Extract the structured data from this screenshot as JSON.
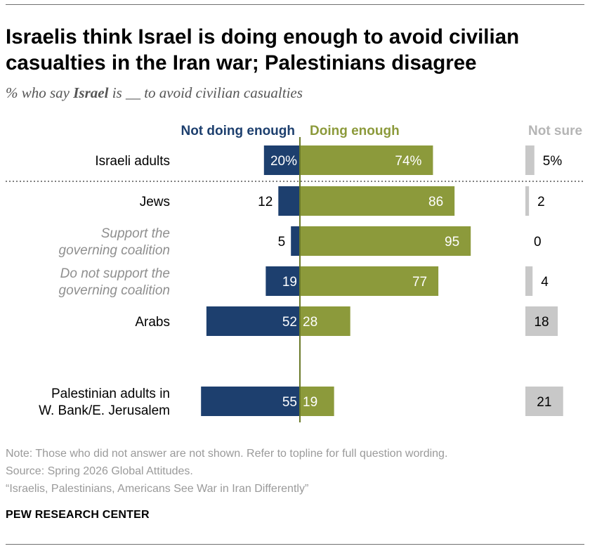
{
  "title": "Israelis think Israel is doing enough to avoid civilian casualties in the Iran war; Palestinians disagree",
  "subtitle": {
    "prefix": "% who say ",
    "emphasis": "Israel",
    "suffix": " is __ to avoid civilian casualties"
  },
  "notes": {
    "note": "Note: Those who did not answer are not shown. Refer to topline for full question wording.",
    "source": "Source: Spring 2026 Global Attitudes.",
    "report": "“Israelis, Palestinians, Americans See War in Iran Differently”"
  },
  "org": "PEW RESEARCH CENTER",
  "colors": {
    "not_enough": "#1d3f6e",
    "enough": "#8c9a3b",
    "not_sure": "#c8c8c8",
    "sub_label": "#8f8f8f"
  },
  "chart_data": {
    "type": "bar",
    "layout": "diverging stacked bar",
    "series": [
      {
        "name": "Not doing enough",
        "values": [
          20,
          12,
          5,
          19,
          52,
          55
        ]
      },
      {
        "name": "Doing enough",
        "values": [
          74,
          86,
          95,
          77,
          28,
          19
        ]
      },
      {
        "name": "Not sure",
        "values": [
          5,
          2,
          0,
          4,
          18,
          21
        ]
      }
    ],
    "categories": [
      "Israeli adults",
      "Jews",
      "Support the governing coalition",
      "Do not support the governing coalition",
      "Arabs",
      "Palestinian adults in W. Bank/E. Jerusalem"
    ],
    "category_lines": [
      [
        "Israeli adults"
      ],
      [
        "Jews"
      ],
      [
        "Support the",
        "governing coalition"
      ],
      [
        "Do not support the",
        "governing coalition"
      ],
      [
        "Arabs"
      ],
      [
        "Palestinian adults in",
        "W. Bank/E. Jerusalem"
      ]
    ],
    "subgroup": [
      false,
      false,
      true,
      true,
      false,
      false
    ],
    "value_labels": {
      "Not doing enough": [
        "20%",
        "12",
        "5",
        "19",
        "52",
        "55"
      ],
      "Doing enough": [
        "74%",
        "86",
        "95",
        "77",
        "28",
        "19"
      ],
      "Not sure": [
        "5%",
        "2",
        "0",
        "4",
        "18",
        "21"
      ]
    }
  }
}
